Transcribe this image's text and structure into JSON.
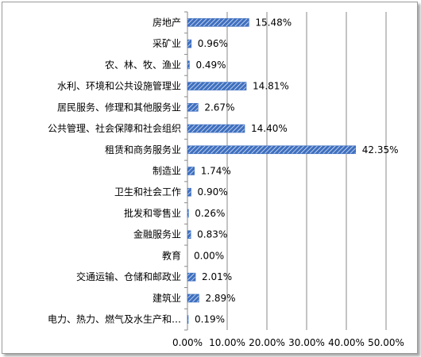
{
  "colors": {
    "bar": "#3f70c0",
    "bar_hatch": "#ffffff",
    "grid": "#8a8a8a",
    "axis": "#8a8a8a"
  },
  "chart_data": {
    "type": "bar",
    "orientation": "horizontal",
    "categories": [
      "房地产",
      "采矿业",
      "农、林、牧、渔业",
      "水利、环境和公共设施管理业",
      "居民服务、修理和其他服务业",
      "公共管理、社会保障和社会组织",
      "租赁和商务服务业",
      "制造业",
      "卫生和社会工作",
      "批发和零售业",
      "金融服务业",
      "教育",
      "交通运输、仓储和邮政业",
      "建筑业",
      "电力、热力、燃气及水生产和…"
    ],
    "values": [
      15.48,
      0.96,
      0.49,
      14.81,
      2.67,
      14.4,
      42.35,
      1.74,
      0.9,
      0.26,
      0.83,
      0.0,
      2.01,
      2.89,
      0.19
    ],
    "value_labels": [
      "15.48%",
      "0.96%",
      "0.49%",
      "14.81%",
      "2.67%",
      "14.40%",
      "42.35%",
      "1.74%",
      "0.90%",
      "0.26%",
      "0.83%",
      "0.00%",
      "2.01%",
      "2.89%",
      "0.19%"
    ],
    "xlim": [
      0,
      50
    ],
    "xticks": [
      0,
      10,
      20,
      30,
      40,
      50
    ],
    "xtick_labels": [
      "0.00%",
      "10.00%",
      "20.00%",
      "30.00%",
      "40.00%",
      "50.00%"
    ],
    "title": "",
    "xlabel": "",
    "ylabel": "",
    "grid": "vertical",
    "legend": false
  }
}
